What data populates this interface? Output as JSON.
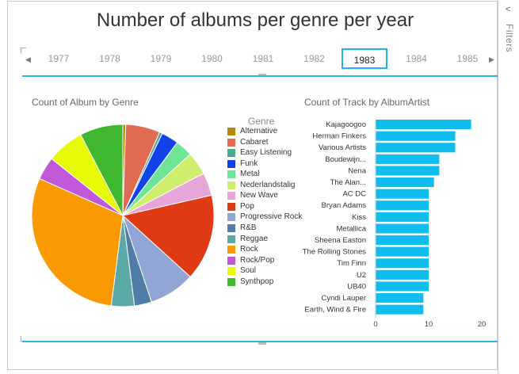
{
  "title": "Number of albums per genre per year",
  "filters_pane": {
    "label": "Filters",
    "collapse_icon": "chevron-left-icon"
  },
  "timeline": {
    "years": [
      "1977",
      "1978",
      "1979",
      "1980",
      "1981",
      "1982",
      "1983",
      "1984",
      "1985"
    ],
    "selected": "1983"
  },
  "pie_title": "Count of Album by Genre",
  "bar_title": "Count of Track by AlbumArtist",
  "legend_title": "Genre",
  "chart_data": [
    {
      "type": "pie",
      "title": "Count of Album by Genre",
      "legend_title": "Genre",
      "slices": [
        {
          "label": "Alternative",
          "value": 1,
          "color": "#b8860b"
        },
        {
          "label": "Cabaret",
          "value": 12,
          "color": "#e06a52"
        },
        {
          "label": "Easy Listening",
          "value": 1,
          "color": "#4aa88f"
        },
        {
          "label": "Funk",
          "value": 6,
          "color": "#1143e8"
        },
        {
          "label": "Metal",
          "value": 6,
          "color": "#6ee596"
        },
        {
          "label": "Nederlandstalig",
          "value": 8,
          "color": "#cfee6b"
        },
        {
          "label": "New Wave",
          "value": 8,
          "color": "#e8a5da"
        },
        {
          "label": "Pop",
          "value": 30,
          "color": "#e03a15"
        },
        {
          "label": "Progressive Rock",
          "value": 16,
          "color": "#92a6d6"
        },
        {
          "label": "R&B",
          "value": 6,
          "color": "#4f7da8"
        },
        {
          "label": "Reggae",
          "value": 8,
          "color": "#5ba9a6"
        },
        {
          "label": "Rock",
          "value": 58,
          "color": "#fb9a00"
        },
        {
          "label": "Rock/Pop",
          "value": 8,
          "color": "#c158d9"
        },
        {
          "label": "Soul",
          "value": 13,
          "color": "#e8fb06"
        },
        {
          "label": "Synthpop",
          "value": 15,
          "color": "#3fb72f"
        }
      ]
    },
    {
      "type": "bar",
      "orientation": "horizontal",
      "title": "Count of Track by AlbumArtist",
      "categories": [
        "Kajagoogoo",
        "Herman Finkers",
        "Various Artists",
        "Boudewijn...",
        "Nena",
        "The Alan...",
        "AC DC",
        "Bryan Adams",
        "Kiss",
        "Metallica",
        "Sheena Easton",
        "The Rolling Stones",
        "Tim Finn",
        "U2",
        "UB40",
        "Cyndi Lauper",
        "Earth, Wind & Fire"
      ],
      "values": [
        18,
        15,
        15,
        12,
        12,
        11,
        10,
        10,
        10,
        10,
        10,
        10,
        10,
        10,
        10,
        9,
        9
      ],
      "xlim": [
        0,
        20
      ],
      "xticks": [
        "0",
        "10",
        "20"
      ],
      "color": "#0fbeef"
    }
  ]
}
